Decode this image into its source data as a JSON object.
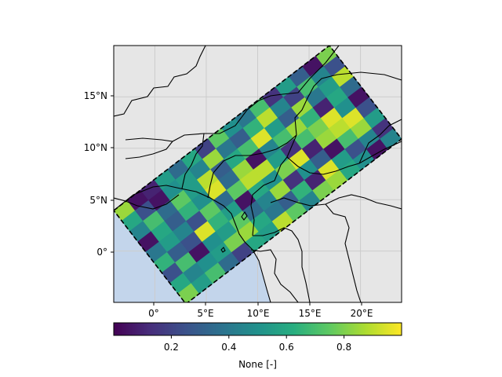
{
  "map": {
    "lat_ticks": [
      "15°N",
      "10°N",
      "5°N",
      "0°"
    ],
    "lon_ticks": [
      "0°",
      "5°E",
      "10°E",
      "15°E",
      "20°E"
    ],
    "colors": {
      "land": "#e6e6e6",
      "ocean": "#c3d5eb",
      "border": "#000000",
      "grid": "#cccccc",
      "swath_outline": "#000000"
    }
  },
  "colorbar": {
    "ticks": [
      "0.2",
      "0.4",
      "0.6",
      "0.8"
    ],
    "label": "None [-]",
    "colormap": "viridis",
    "range": [
      0.0,
      1.0
    ]
  },
  "chart_data": {
    "type": "heatmap",
    "colormap": "viridis",
    "value_range": [
      0.0,
      1.0
    ],
    "lon_range": [
      -4,
      24
    ],
    "lat_range": [
      -5,
      20
    ],
    "grid_on": true,
    "swath_rows": 9,
    "swath_cols": 16,
    "values": [
      [
        0.85,
        0.05,
        0.1,
        0.55,
        0.35,
        0.6,
        0.2,
        0.75,
        0.5,
        0.4,
        0.7,
        0.15,
        0.55,
        0.3,
        0.05,
        0.8
      ],
      [
        0.6,
        0.25,
        0.05,
        0.5,
        0.55,
        0.45,
        0.85,
        0.4,
        0.3,
        0.65,
        0.9,
        0.45,
        0.2,
        0.7,
        0.45,
        0.25
      ],
      [
        0.45,
        0.7,
        0.35,
        0.75,
        0.55,
        0.9,
        0.3,
        0.6,
        0.7,
        0.95,
        0.55,
        0.3,
        0.85,
        0.4,
        0.55,
        0.9
      ],
      [
        0.05,
        0.6,
        0.3,
        0.65,
        0.5,
        0.95,
        0.35,
        0.85,
        0.05,
        0.45,
        0.7,
        0.85,
        0.65,
        0.1,
        0.6,
        0.35
      ],
      [
        0.4,
        0.55,
        0.45,
        0.25,
        0.75,
        0.35,
        0.75,
        0.9,
        0.9,
        0.55,
        0.15,
        0.7,
        0.8,
        0.95,
        0.5,
        0.05
      ],
      [
        0.65,
        0.3,
        0.25,
        0.95,
        0.65,
        0.55,
        0.05,
        0.6,
        0.5,
        0.8,
        0.95,
        0.1,
        0.85,
        0.9,
        0.95,
        0.25
      ],
      [
        0.25,
        0.7,
        0.05,
        0.5,
        0.55,
        0.75,
        0.35,
        0.45,
        0.85,
        0.15,
        0.5,
        0.3,
        0.05,
        0.7,
        0.85,
        0.55
      ],
      [
        0.6,
        0.45,
        0.5,
        0.55,
        0.8,
        0.85,
        0.6,
        0.4,
        0.3,
        0.65,
        0.1,
        0.95,
        0.55,
        0.25,
        0.45,
        0.15
      ],
      [
        0.8,
        0.55,
        0.7,
        0.35,
        0.2,
        0.6,
        0.55,
        0.9,
        0.75,
        0.45,
        0.8,
        0.85,
        0.6,
        0.5,
        0.05,
        0.45
      ]
    ]
  }
}
